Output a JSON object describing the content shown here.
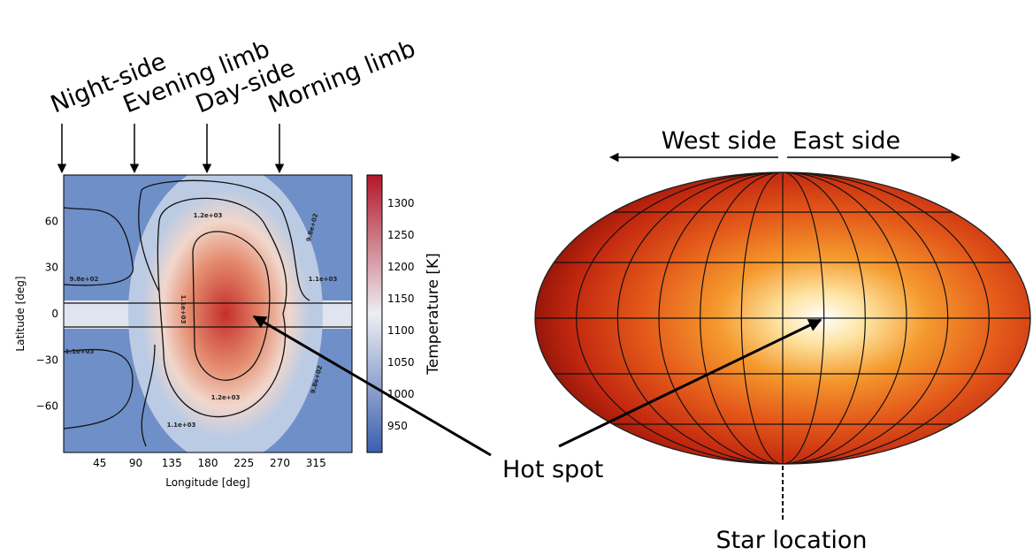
{
  "top_labels": [
    "Night-side",
    "Evening limb",
    "Day-side",
    "Morning limb"
  ],
  "map": {
    "xlabel": "Longitude [deg]",
    "ylabel": "Latitude [deg]",
    "xticks": [
      "45",
      "90",
      "135",
      "180",
      "225",
      "270",
      "315"
    ],
    "yticks": [
      "60",
      "30",
      "0",
      "−30",
      "−60"
    ],
    "contour_labels": [
      "1.2e+03",
      "1.2e+03",
      "1.1e+03",
      "9.8e+02",
      "9.8e+02",
      "1.1e+03",
      "1.1e+03",
      "9.8e+02",
      "1.1e+03"
    ]
  },
  "colorbar": {
    "label": "Temperature [K]",
    "ticks": [
      "1300",
      "1250",
      "1200",
      "1150",
      "1100",
      "1050",
      "1000",
      "950"
    ]
  },
  "globe": {
    "west": "West side",
    "east": "East side"
  },
  "hot_spot": "Hot spot",
  "star": "Star location"
}
